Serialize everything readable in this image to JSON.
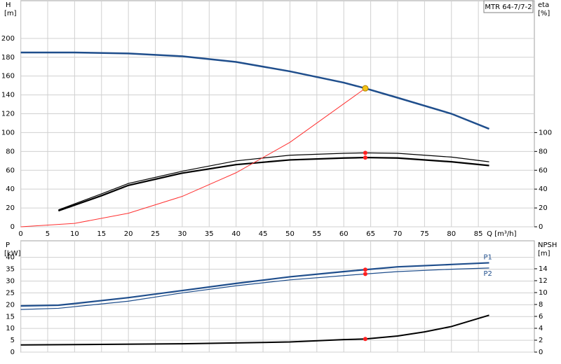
{
  "chart_data": [
    {
      "type": "line",
      "y_label": "H",
      "y_unit": "[m]",
      "y2_label": "eta",
      "y2_unit": "[%]",
      "x_label": "Q [m³/h]",
      "model_label": "MTR 64-7/7-2",
      "xlim": [
        0,
        95.4
      ],
      "xticks": [
        0,
        5,
        10,
        15,
        20,
        25,
        30,
        35,
        40,
        45,
        50,
        55,
        60,
        65,
        70,
        75,
        80,
        85
      ],
      "show_xtick_labels": true,
      "ylim": [
        0,
        240
      ],
      "yticks": [
        0,
        20,
        40,
        60,
        80,
        100,
        120,
        140,
        160,
        180,
        200
      ],
      "y2lim": [
        0,
        240
      ],
      "y2ticks": [
        0,
        20,
        40,
        60,
        80,
        100
      ],
      "grid": true,
      "series": [
        {
          "color": "#1f4e8c",
          "width": 2.5,
          "axis": "y",
          "x": [
            0,
            10,
            20,
            30,
            40,
            50,
            60,
            64,
            70,
            80,
            87
          ],
          "values": [
            185,
            185,
            184,
            181,
            175,
            165,
            153,
            147,
            137,
            120,
            104
          ]
        },
        {
          "color": "#000000",
          "width": 1.2,
          "axis": "y2",
          "x": [
            7,
            15,
            20,
            30,
            40,
            50,
            60,
            64,
            70,
            80,
            87
          ],
          "values": [
            18,
            35,
            46,
            59,
            70,
            76,
            78,
            78.5,
            78,
            74,
            69
          ]
        },
        {
          "color": "#000000",
          "width": 2.2,
          "axis": "y2",
          "x": [
            7,
            15,
            20,
            30,
            40,
            50,
            60,
            64,
            70,
            80,
            87
          ],
          "values": [
            17,
            33,
            44,
            57,
            66,
            71,
            73,
            73.5,
            73,
            69,
            65
          ]
        },
        {
          "color": "#ff3030",
          "width": 1,
          "axis": "y",
          "x": [
            0,
            10,
            20,
            30,
            40,
            50,
            64
          ],
          "values": [
            0,
            3.6,
            14.4,
            32.3,
            57.4,
            89.7,
            147
          ]
        }
      ],
      "points": [
        {
          "x": 64,
          "y": 147,
          "color": "#f5c518",
          "axis": "y"
        },
        {
          "x": 64,
          "y": 78.5,
          "color": "#ff2020",
          "axis": "y2"
        },
        {
          "x": 64,
          "y": 73.5,
          "color": "#ff2020",
          "axis": "y2"
        }
      ]
    },
    {
      "type": "line",
      "y_label": "P",
      "y_unit": "[kW]",
      "y2_label": "NPSH",
      "y2_unit": "[m]",
      "xlim": [
        0,
        95.4
      ],
      "xticks": [
        0,
        5,
        10,
        15,
        20,
        25,
        30,
        35,
        40,
        45,
        50,
        55,
        60,
        65,
        70,
        75,
        80,
        85
      ],
      "show_xtick_labels": false,
      "ylim": [
        0,
        47
      ],
      "yticks": [
        0,
        5,
        10,
        15,
        20,
        25,
        30,
        35,
        40
      ],
      "y2lim": [
        0,
        18.7
      ],
      "y2ticks": [
        0,
        2,
        4,
        6,
        8,
        10,
        12,
        14
      ],
      "grid": true,
      "series": [
        {
          "name": "P1",
          "color": "#1f4e8c",
          "width": 2.2,
          "axis": "y",
          "x": [
            0,
            7,
            10,
            20,
            30,
            40,
            50,
            60,
            64,
            70,
            80,
            87
          ],
          "values": [
            19.5,
            19.8,
            20.5,
            23,
            26,
            29,
            31.8,
            34,
            34.8,
            36,
            37,
            37.7
          ]
        },
        {
          "name": "P2",
          "color": "#1f4e8c",
          "width": 1.2,
          "axis": "y",
          "x": [
            0,
            7,
            20,
            30,
            40,
            50,
            60,
            64,
            70,
            80,
            87
          ],
          "values": [
            18,
            18.5,
            21.5,
            25,
            28,
            30.5,
            32.3,
            33,
            34,
            35,
            35.5
          ]
        },
        {
          "color": "#000000",
          "width": 2,
          "axis": "y2",
          "x": [
            0,
            30,
            50,
            60,
            64,
            70,
            75,
            80,
            87
          ],
          "values": [
            1.2,
            1.4,
            1.7,
            2.1,
            2.2,
            2.7,
            3.4,
            4.3,
            6.2
          ]
        }
      ],
      "points": [
        {
          "x": 64,
          "y": 34.8,
          "color": "#ff2020",
          "axis": "y"
        },
        {
          "x": 64,
          "y": 33,
          "color": "#ff2020",
          "axis": "y"
        },
        {
          "x": 64,
          "y": 2.2,
          "color": "#ff2020",
          "axis": "y2"
        }
      ]
    }
  ]
}
